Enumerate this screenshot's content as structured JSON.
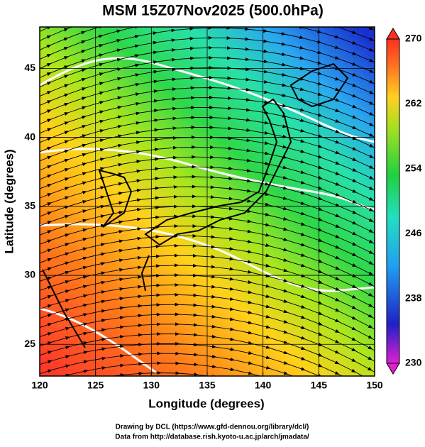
{
  "chart_data": {
    "type": "map",
    "title": "MSM 15Z07Nov2025 (500.0hPa)",
    "xlabel": "Longitude (degrees)",
    "ylabel": "Latitude  (degrees)",
    "xlim": [
      120,
      150
    ],
    "ylim": [
      22.7,
      48
    ],
    "xticks": [
      120,
      125,
      130,
      135,
      140,
      145,
      150
    ],
    "yticks": [
      25,
      30,
      35,
      40,
      45
    ],
    "grid": true,
    "colorbar": {
      "clim": [
        230,
        270
      ],
      "ticks": [
        230,
        238,
        246,
        254,
        262,
        270
      ]
    },
    "credits": [
      "Drawing by DCL (https://www.gfd-dennou.org/library/dcl/)",
      "Data from http://database.rish.kyoto-u.ac.jp/arch/jmadata/"
    ]
  }
}
